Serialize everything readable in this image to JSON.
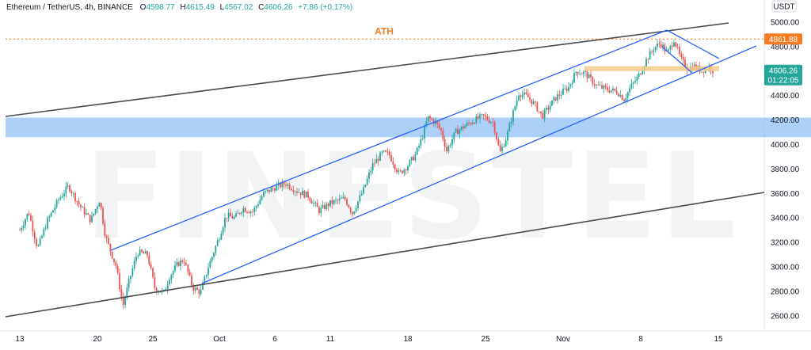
{
  "header": {
    "symbol": "Ethereum / TetherUS, 4h, BINANCE",
    "o_label": "O",
    "o_value": "4598.77",
    "h_label": "H",
    "h_value": "4615.49",
    "l_label": "L",
    "l_value": "4567.02",
    "c_label": "C",
    "c_value": "4606.26",
    "change": "+7.86 (+0.17%)"
  },
  "currency_button": "USDT",
  "watermark": "FINESTEL",
  "colors": {
    "up": "#26a69a",
    "down": "#ef5350",
    "channel": "#2962ff",
    "trendline": "#4a4a4a",
    "ath": "#f57c20",
    "zone": "#90c0f5",
    "support": "#f5c98a",
    "price_tag": "#26a69a"
  },
  "chart_data": {
    "type": "candlestick",
    "title": "Ethereum / TetherUS, 4h, BINANCE",
    "ylim": [
      2460,
      5100
    ],
    "y_ticks": [
      "5000.00",
      "4800.00",
      "4600.00",
      "4400.00",
      "4200.00",
      "4000.00",
      "3800.00",
      "3600.00",
      "3400.00",
      "3200.00",
      "3000.00",
      "2800.00",
      "2600.00"
    ],
    "y_tick_values": [
      5000,
      4800,
      4600,
      4400,
      4200,
      4000,
      3800,
      3600,
      3400,
      3200,
      3000,
      2800,
      2600
    ],
    "x_ticks": [
      "13",
      "20",
      "25",
      "Oct",
      "6",
      "11",
      "18",
      "25",
      "Nov",
      "8",
      "15"
    ],
    "x_tick_days": [
      0,
      7,
      12,
      18,
      23,
      28,
      35,
      42,
      49,
      56,
      63
    ],
    "x_range_days": [
      0,
      68
    ],
    "anchors": [
      [
        0,
        3300
      ],
      [
        0.8,
        3450
      ],
      [
        1.6,
        3150
      ],
      [
        2.5,
        3380
      ],
      [
        3.5,
        3550
      ],
      [
        4.4,
        3660
      ],
      [
        5.4,
        3500
      ],
      [
        6.4,
        3380
      ],
      [
        7.2,
        3550
      ],
      [
        7.7,
        3260
      ],
      [
        8.1,
        3150
      ],
      [
        8.7,
        3000
      ],
      [
        9.3,
        2680
      ],
      [
        9.9,
        2900
      ],
      [
        10.6,
        3120
      ],
      [
        11.5,
        3100
      ],
      [
        12.2,
        2820
      ],
      [
        13,
        2790
      ],
      [
        13.5,
        2920
      ],
      [
        14.2,
        3020
      ],
      [
        14.8,
        3060
      ],
      [
        15.6,
        2830
      ],
      [
        16.3,
        2790
      ],
      [
        17,
        3000
      ],
      [
        18,
        3250
      ],
      [
        18.6,
        3420
      ],
      [
        19.4,
        3400
      ],
      [
        20.1,
        3480
      ],
      [
        21,
        3450
      ],
      [
        22,
        3600
      ],
      [
        23,
        3650
      ],
      [
        24,
        3680
      ],
      [
        25,
        3620
      ],
      [
        26,
        3580
      ],
      [
        27,
        3460
      ],
      [
        28,
        3520
      ],
      [
        29.3,
        3560
      ],
      [
        30,
        3440
      ],
      [
        31,
        3630
      ],
      [
        31.8,
        3830
      ],
      [
        32.7,
        3930
      ],
      [
        33.3,
        3920
      ],
      [
        34.2,
        3760
      ],
      [
        35,
        3830
      ],
      [
        35.7,
        3920
      ],
      [
        36.3,
        4060
      ],
      [
        36.8,
        4220
      ],
      [
        37.5,
        4180
      ],
      [
        38,
        4110
      ],
      [
        38.5,
        3950
      ],
      [
        39.3,
        4100
      ],
      [
        40.1,
        4150
      ],
      [
        41,
        4200
      ],
      [
        41.8,
        4230
      ],
      [
        42.7,
        4180
      ],
      [
        43.3,
        3930
      ],
      [
        43.9,
        4060
      ],
      [
        44.4,
        4230
      ],
      [
        45,
        4420
      ],
      [
        45.8,
        4390
      ],
      [
        46.5,
        4320
      ],
      [
        47.1,
        4230
      ],
      [
        47.6,
        4290
      ],
      [
        48.3,
        4380
      ],
      [
        49.5,
        4470
      ],
      [
        50.2,
        4600
      ],
      [
        51,
        4580
      ],
      [
        52,
        4480
      ],
      [
        53,
        4450
      ],
      [
        53.9,
        4430
      ],
      [
        54.5,
        4370
      ],
      [
        55.1,
        4470
      ],
      [
        55.8,
        4560
      ],
      [
        56.5,
        4690
      ],
      [
        57.2,
        4790
      ],
      [
        57.8,
        4830
      ],
      [
        58.4,
        4740
      ],
      [
        59,
        4860
      ],
      [
        59.6,
        4700
      ],
      [
        60.2,
        4620
      ],
      [
        60.8,
        4640
      ],
      [
        61.5,
        4600
      ],
      [
        62.1,
        4640
      ],
      [
        62.5,
        4606
      ]
    ],
    "volatility_seed": 7,
    "annotations": {
      "ath_label": "ATH",
      "ath_value": 4861.88,
      "ath_tag": "4861.88",
      "last_price_value": 4606.26,
      "last_price_tag": "4606.26",
      "countdown": "01:22:05",
      "blue_zone": [
        4060,
        4220
      ],
      "support_zone": [
        4600,
        4640
      ]
    }
  }
}
